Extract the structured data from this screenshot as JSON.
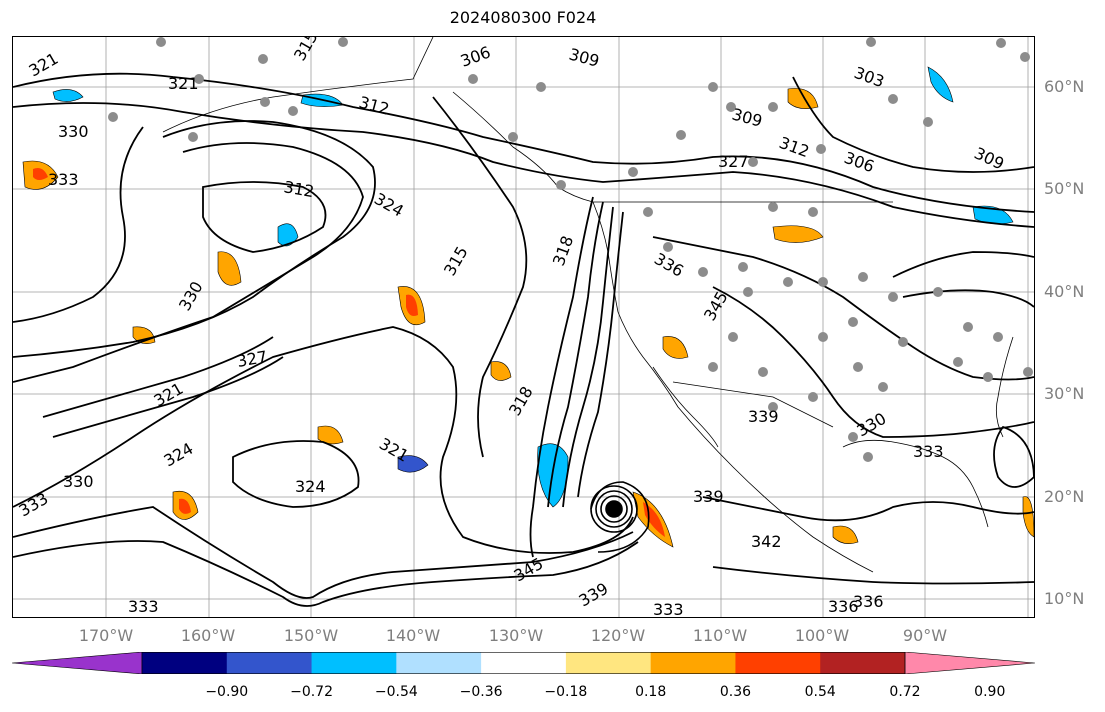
{
  "title": "2024080300 F024",
  "map": {
    "lat_labels": [
      "60°N",
      "50°N",
      "40°N",
      "30°N",
      "20°N",
      "10°N"
    ],
    "lon_labels": [
      "170°W",
      "160°W",
      "150°W",
      "140°W",
      "130°W",
      "120°W",
      "110°W",
      "100°W",
      "90°W"
    ],
    "contour_labels": [
      "321",
      "315",
      "306",
      "309",
      "303",
      "330",
      "312",
      "309",
      "327",
      "312",
      "306",
      "309",
      "333",
      "321",
      "324",
      "312",
      "318",
      "315",
      "330",
      "336",
      "345",
      "339",
      "330",
      "333",
      "339",
      "342",
      "324",
      "321",
      "330",
      "333",
      "336",
      "339",
      "333",
      "345",
      "333",
      "336",
      "327",
      "318",
      "321",
      "324"
    ],
    "contour_color": "#000000",
    "grid_color": "#9e9e9e",
    "station_marker_color": "#8c8c8c"
  },
  "colorbar": {
    "tick_labels": [
      "−0.90",
      "−0.72",
      "−0.54",
      "−0.36",
      "−0.18",
      "0.18",
      "0.36",
      "0.54",
      "0.72",
      "0.90"
    ],
    "colors": [
      "#9933cc",
      "#000080",
      "#3355cc",
      "#00bfff",
      "#b0e0ff",
      "#ffffff",
      "#ffe680",
      "#ffa500",
      "#ff4000",
      "#b22222",
      "#ff88aa"
    ]
  }
}
